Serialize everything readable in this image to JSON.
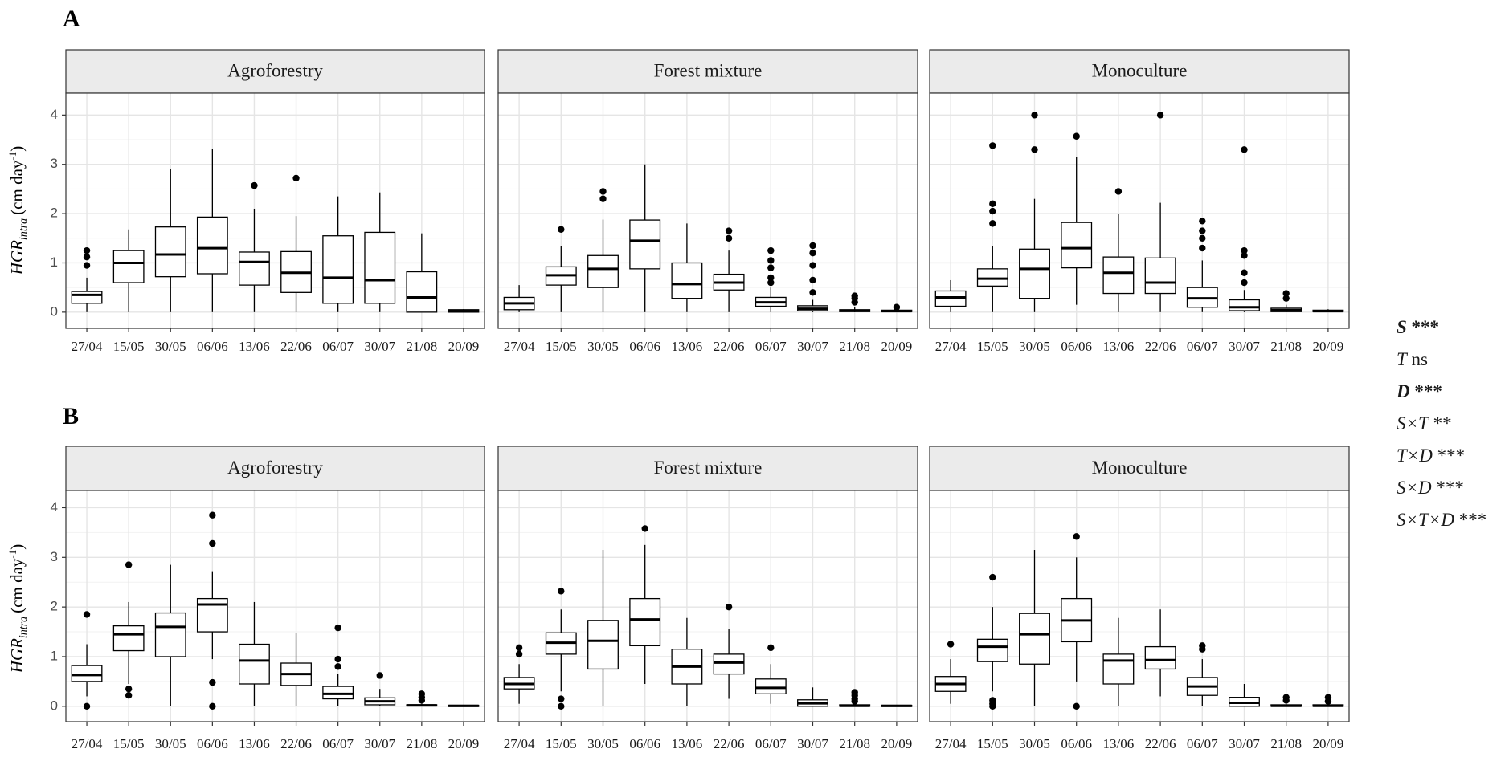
{
  "chart_data": [
    {
      "type": "box",
      "panel_letter": "A",
      "ylabel": {
        "base": "HGR",
        "subscript": "intra",
        "units": "(cm day",
        "superscript": "-1",
        "close": ")"
      },
      "ylim": [
        -0.1,
        4.25
      ],
      "yticks": [
        0,
        1,
        2,
        3,
        4
      ],
      "grid": true,
      "categories": [
        "27/04",
        "15/05",
        "30/05",
        "06/06",
        "13/06",
        "22/06",
        "06/07",
        "30/07",
        "21/08",
        "20/09"
      ],
      "facets": [
        {
          "name": "Agroforestry",
          "boxes": [
            {
              "lower": 0.0,
              "q1": 0.18,
              "median": 0.35,
              "q3": 0.42,
              "upper": 0.7,
              "outliers": [
                0.95,
                1.12,
                1.25
              ]
            },
            {
              "lower": 0.0,
              "q1": 0.6,
              "median": 1.0,
              "q3": 1.25,
              "upper": 1.68,
              "outliers": []
            },
            {
              "lower": 0.0,
              "q1": 0.72,
              "median": 1.17,
              "q3": 1.73,
              "upper": 2.9,
              "outliers": []
            },
            {
              "lower": 0.0,
              "q1": 0.78,
              "median": 1.3,
              "q3": 1.93,
              "upper": 3.32,
              "outliers": []
            },
            {
              "lower": 0.0,
              "q1": 0.55,
              "median": 1.02,
              "q3": 1.22,
              "upper": 2.1,
              "outliers": [
                2.57
              ]
            },
            {
              "lower": 0.0,
              "q1": 0.4,
              "median": 0.8,
              "q3": 1.23,
              "upper": 1.95,
              "outliers": [
                2.72
              ]
            },
            {
              "lower": 0.0,
              "q1": 0.18,
              "median": 0.7,
              "q3": 1.55,
              "upper": 2.35,
              "outliers": []
            },
            {
              "lower": 0.0,
              "q1": 0.18,
              "median": 0.65,
              "q3": 1.62,
              "upper": 2.43,
              "outliers": []
            },
            {
              "lower": 0.0,
              "q1": 0.0,
              "median": 0.3,
              "q3": 0.82,
              "upper": 1.6,
              "outliers": []
            },
            {
              "lower": 0.0,
              "q1": 0.0,
              "median": 0.02,
              "q3": 0.05,
              "upper": 0.06,
              "outliers": []
            }
          ]
        },
        {
          "name": "Forest mixture",
          "boxes": [
            {
              "lower": 0.0,
              "q1": 0.05,
              "median": 0.18,
              "q3": 0.3,
              "upper": 0.55,
              "outliers": []
            },
            {
              "lower": 0.0,
              "q1": 0.55,
              "median": 0.75,
              "q3": 0.92,
              "upper": 1.35,
              "outliers": [
                1.68
              ]
            },
            {
              "lower": 0.0,
              "q1": 0.5,
              "median": 0.88,
              "q3": 1.15,
              "upper": 1.88,
              "outliers": [
                2.3,
                2.45
              ]
            },
            {
              "lower": 0.0,
              "q1": 0.88,
              "median": 1.45,
              "q3": 1.87,
              "upper": 3.0,
              "outliers": []
            },
            {
              "lower": 0.0,
              "q1": 0.28,
              "median": 0.57,
              "q3": 1.0,
              "upper": 1.8,
              "outliers": []
            },
            {
              "lower": 0.0,
              "q1": 0.45,
              "median": 0.6,
              "q3": 0.77,
              "upper": 1.25,
              "outliers": [
                1.5,
                1.65
              ]
            },
            {
              "lower": 0.0,
              "q1": 0.12,
              "median": 0.2,
              "q3": 0.3,
              "upper": 0.5,
              "outliers": [
                0.6,
                0.7,
                0.9,
                1.05,
                1.25
              ]
            },
            {
              "lower": 0.0,
              "q1": 0.03,
              "median": 0.07,
              "q3": 0.13,
              "upper": 0.25,
              "outliers": [
                0.4,
                0.65,
                0.95,
                1.2,
                1.35
              ]
            },
            {
              "lower": 0.0,
              "q1": 0.01,
              "median": 0.03,
              "q3": 0.05,
              "upper": 0.1,
              "outliers": [
                0.2,
                0.28,
                0.33
              ]
            },
            {
              "lower": 0.0,
              "q1": 0.01,
              "median": 0.02,
              "q3": 0.04,
              "upper": 0.06,
              "outliers": [
                0.1
              ]
            }
          ]
        },
        {
          "name": "Monoculture",
          "boxes": [
            {
              "lower": 0.0,
              "q1": 0.12,
              "median": 0.3,
              "q3": 0.43,
              "upper": 0.65,
              "outliers": []
            },
            {
              "lower": 0.0,
              "q1": 0.53,
              "median": 0.68,
              "q3": 0.88,
              "upper": 1.35,
              "outliers": [
                1.8,
                2.05,
                2.2,
                3.38
              ]
            },
            {
              "lower": 0.0,
              "q1": 0.28,
              "median": 0.88,
              "q3": 1.28,
              "upper": 2.3,
              "outliers": [
                3.3,
                4.0
              ]
            },
            {
              "lower": 0.15,
              "q1": 0.9,
              "median": 1.3,
              "q3": 1.82,
              "upper": 3.15,
              "outliers": [
                3.57
              ]
            },
            {
              "lower": 0.0,
              "q1": 0.38,
              "median": 0.8,
              "q3": 1.12,
              "upper": 2.0,
              "outliers": [
                2.45
              ]
            },
            {
              "lower": 0.0,
              "q1": 0.38,
              "median": 0.6,
              "q3": 1.1,
              "upper": 2.22,
              "outliers": [
                4.0
              ]
            },
            {
              "lower": 0.0,
              "q1": 0.1,
              "median": 0.28,
              "q3": 0.5,
              "upper": 1.05,
              "outliers": [
                1.3,
                1.5,
                1.65,
                1.85
              ]
            },
            {
              "lower": 0.0,
              "q1": 0.03,
              "median": 0.1,
              "q3": 0.25,
              "upper": 0.45,
              "outliers": [
                0.6,
                0.8,
                1.15,
                1.25,
                3.3
              ]
            },
            {
              "lower": 0.0,
              "q1": 0.01,
              "median": 0.04,
              "q3": 0.08,
              "upper": 0.15,
              "outliers": [
                0.28,
                0.38
              ]
            },
            {
              "lower": 0.0,
              "q1": 0.01,
              "median": 0.02,
              "q3": 0.04,
              "upper": 0.06,
              "outliers": []
            }
          ]
        }
      ]
    },
    {
      "type": "box",
      "panel_letter": "B",
      "ylabel": {
        "base": "HGR",
        "subscript": "intra",
        "units": "(cm day",
        "superscript": "-1",
        "close": ")"
      },
      "ylim": [
        -0.1,
        4.25
      ],
      "yticks": [
        0,
        1,
        2,
        3,
        4
      ],
      "grid": true,
      "categories": [
        "27/04",
        "15/05",
        "30/05",
        "06/06",
        "13/06",
        "22/06",
        "06/07",
        "30/07",
        "21/08",
        "20/09"
      ],
      "facets": [
        {
          "name": "Agroforestry",
          "boxes": [
            {
              "lower": 0.2,
              "q1": 0.5,
              "median": 0.63,
              "q3": 0.82,
              "upper": 1.25,
              "outliers": [
                0.0,
                1.85
              ]
            },
            {
              "lower": 0.45,
              "q1": 1.12,
              "median": 1.45,
              "q3": 1.62,
              "upper": 2.1,
              "outliers": [
                0.22,
                0.35,
                2.85
              ]
            },
            {
              "lower": 0.0,
              "q1": 1.0,
              "median": 1.6,
              "q3": 1.88,
              "upper": 2.85,
              "outliers": []
            },
            {
              "lower": 0.95,
              "q1": 1.5,
              "median": 2.05,
              "q3": 2.17,
              "upper": 2.72,
              "outliers": [
                0.0,
                0.48,
                3.28,
                3.85
              ]
            },
            {
              "lower": 0.0,
              "q1": 0.45,
              "median": 0.92,
              "q3": 1.25,
              "upper": 2.1,
              "outliers": []
            },
            {
              "lower": 0.0,
              "q1": 0.42,
              "median": 0.65,
              "q3": 0.87,
              "upper": 1.48,
              "outliers": []
            },
            {
              "lower": 0.0,
              "q1": 0.15,
              "median": 0.25,
              "q3": 0.4,
              "upper": 0.65,
              "outliers": [
                0.8,
                0.95,
                1.58
              ]
            },
            {
              "lower": 0.0,
              "q1": 0.03,
              "median": 0.1,
              "q3": 0.17,
              "upper": 0.35,
              "outliers": [
                0.62
              ]
            },
            {
              "lower": 0.0,
              "q1": 0.01,
              "median": 0.02,
              "q3": 0.03,
              "upper": 0.05,
              "outliers": [
                0.12,
                0.18,
                0.25
              ]
            },
            {
              "lower": 0.0,
              "q1": 0.0,
              "median": 0.01,
              "q3": 0.02,
              "upper": 0.03,
              "outliers": []
            }
          ]
        },
        {
          "name": "Forest mixture",
          "boxes": [
            {
              "lower": 0.05,
              "q1": 0.35,
              "median": 0.45,
              "q3": 0.58,
              "upper": 0.85,
              "outliers": [
                1.05,
                1.18
              ]
            },
            {
              "lower": 0.3,
              "q1": 1.05,
              "median": 1.28,
              "q3": 1.48,
              "upper": 1.95,
              "outliers": [
                0.0,
                0.15,
                2.32
              ]
            },
            {
              "lower": 0.0,
              "q1": 0.75,
              "median": 1.32,
              "q3": 1.73,
              "upper": 3.15,
              "outliers": []
            },
            {
              "lower": 0.45,
              "q1": 1.22,
              "median": 1.75,
              "q3": 2.17,
              "upper": 3.25,
              "outliers": [
                3.58
              ]
            },
            {
              "lower": 0.0,
              "q1": 0.45,
              "median": 0.8,
              "q3": 1.15,
              "upper": 1.78,
              "outliers": []
            },
            {
              "lower": 0.15,
              "q1": 0.65,
              "median": 0.88,
              "q3": 1.05,
              "upper": 1.55,
              "outliers": [
                2.0
              ]
            },
            {
              "lower": 0.05,
              "q1": 0.25,
              "median": 0.37,
              "q3": 0.55,
              "upper": 0.85,
              "outliers": [
                1.18
              ]
            },
            {
              "lower": 0.0,
              "q1": 0.0,
              "median": 0.06,
              "q3": 0.13,
              "upper": 0.38,
              "outliers": []
            },
            {
              "lower": 0.0,
              "q1": 0.0,
              "median": 0.01,
              "q3": 0.03,
              "upper": 0.05,
              "outliers": [
                0.1,
                0.15,
                0.22,
                0.28
              ]
            },
            {
              "lower": 0.0,
              "q1": 0.0,
              "median": 0.01,
              "q3": 0.02,
              "upper": 0.03,
              "outliers": []
            }
          ]
        },
        {
          "name": "Monoculture",
          "boxes": [
            {
              "lower": 0.05,
              "q1": 0.3,
              "median": 0.45,
              "q3": 0.6,
              "upper": 0.95,
              "outliers": [
                1.25
              ]
            },
            {
              "lower": 0.3,
              "q1": 0.9,
              "median": 1.2,
              "q3": 1.35,
              "upper": 2.0,
              "outliers": [
                0.0,
                0.05,
                0.12,
                2.6
              ]
            },
            {
              "lower": 0.0,
              "q1": 0.85,
              "median": 1.45,
              "q3": 1.87,
              "upper": 3.15,
              "outliers": []
            },
            {
              "lower": 0.5,
              "q1": 1.3,
              "median": 1.73,
              "q3": 2.17,
              "upper": 3.0,
              "outliers": [
                0.0,
                3.42
              ]
            },
            {
              "lower": 0.0,
              "q1": 0.45,
              "median": 0.92,
              "q3": 1.05,
              "upper": 1.78,
              "outliers": []
            },
            {
              "lower": 0.2,
              "q1": 0.75,
              "median": 0.93,
              "q3": 1.2,
              "upper": 1.95,
              "outliers": []
            },
            {
              "lower": 0.0,
              "q1": 0.22,
              "median": 0.4,
              "q3": 0.58,
              "upper": 0.95,
              "outliers": [
                1.15,
                1.22
              ]
            },
            {
              "lower": 0.0,
              "q1": 0.0,
              "median": 0.07,
              "q3": 0.18,
              "upper": 0.45,
              "outliers": []
            },
            {
              "lower": 0.0,
              "q1": 0.0,
              "median": 0.01,
              "q3": 0.03,
              "upper": 0.05,
              "outliers": [
                0.12,
                0.18
              ]
            },
            {
              "lower": 0.0,
              "q1": 0.0,
              "median": 0.01,
              "q3": 0.03,
              "upper": 0.05,
              "outliers": [
                0.1,
                0.18
              ]
            }
          ]
        }
      ]
    }
  ],
  "stats_legend": [
    {
      "term": "S",
      "sig": "***",
      "bold": true
    },
    {
      "term": "T",
      "sig": "ns",
      "bold": false
    },
    {
      "term": "D",
      "sig": "***",
      "bold": true
    },
    {
      "term": "S×T",
      "sig": "**",
      "bold": false
    },
    {
      "term": "T×D",
      "sig": "***",
      "bold": false
    },
    {
      "term": "S×D",
      "sig": "***",
      "bold": false
    },
    {
      "term": "S×T×D",
      "sig": "***",
      "bold": false
    }
  ],
  "colors": {
    "strip_fill": "#ebebeb",
    "strip_border": "#333333",
    "panel_border": "#333333",
    "grid": "#e5e5e5",
    "ink": "#000000",
    "tick_text": "#4d4d4d"
  }
}
